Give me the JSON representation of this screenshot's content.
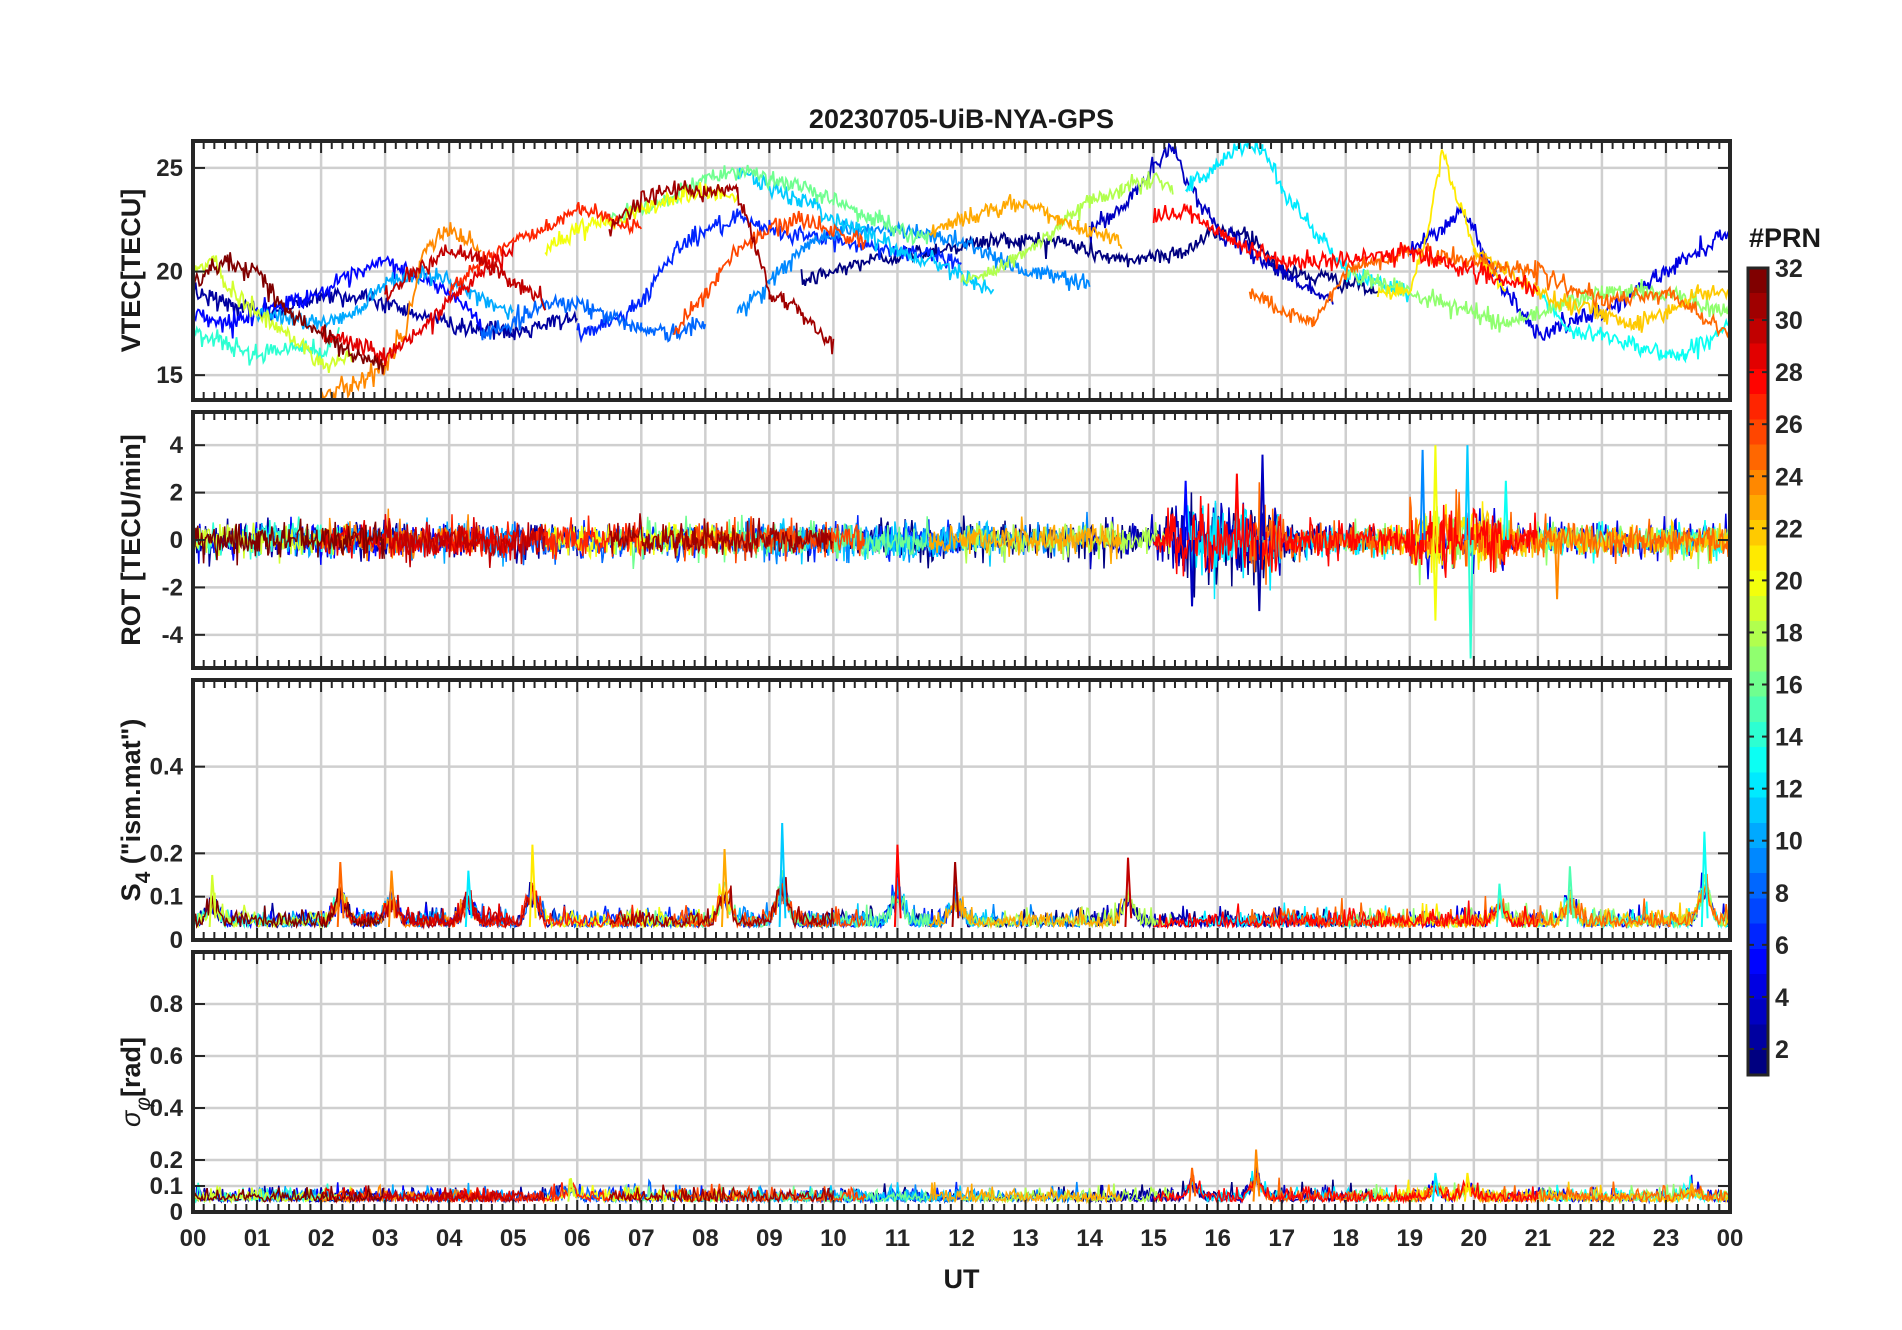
{
  "chart_data": {
    "type": "line",
    "title": "20230705-UiB-NYA-GPS",
    "xlabel": "UT",
    "x_ticks": [
      "00",
      "01",
      "02",
      "03",
      "04",
      "05",
      "06",
      "07",
      "08",
      "09",
      "10",
      "11",
      "12",
      "13",
      "14",
      "15",
      "16",
      "17",
      "18",
      "19",
      "20",
      "21",
      "22",
      "23",
      "00"
    ],
    "xlim_hours": [
      0,
      24
    ],
    "grid": true,
    "colorbar": {
      "label": "#PRN",
      "range": [
        1,
        32
      ],
      "ticks": [
        "2",
        "4",
        "6",
        "8",
        "10",
        "12",
        "14",
        "16",
        "18",
        "20",
        "22",
        "24",
        "26",
        "28",
        "30",
        "32"
      ],
      "colormap": "jet",
      "colors": [
        "#00007f",
        "#0000ff",
        "#007fff",
        "#00ffff",
        "#7fff7f",
        "#ffff00",
        "#ff7f00",
        "#ff0000",
        "#7f0000"
      ]
    },
    "panels": [
      {
        "id": "vtec",
        "ylabel": "VTEC[TECU]",
        "ylim": [
          13.8,
          26.3
        ],
        "yticks": [
          15,
          20,
          25
        ],
        "ytick_labels": [
          "15",
          "20",
          "25"
        ],
        "series": [
          {
            "prn": 1,
            "x": [
              9.5,
              10.5,
              11.5,
              12.5,
              13.5,
              14.5,
              15.5,
              16,
              16.5,
              17,
              18,
              18.5
            ],
            "y": [
              19.5,
              20.5,
              21,
              21.5,
              21.5,
              20.5,
              21,
              22,
              21.8,
              20,
              19.5,
              19
            ]
          },
          {
            "prn": 2,
            "x": [
              0,
              0.5,
              1,
              1.5,
              2,
              3,
              4,
              4.5,
              5,
              6
            ],
            "y": [
              19,
              18.5,
              18,
              18.2,
              19,
              18.5,
              17.5,
              17.2,
              17,
              17.8
            ]
          },
          {
            "prn": 3,
            "x": [
              14,
              14.5,
              15,
              15.3,
              15.6,
              16,
              16.5,
              17,
              17.8
            ],
            "y": [
              22,
              23,
              25,
              26,
              24,
              22,
              21,
              20,
              18.5
            ]
          },
          {
            "prn": 4,
            "x": [
              19,
              19.5,
              19.8,
              20,
              20.3,
              21,
              21.5,
              22,
              23,
              23.5,
              24
            ],
            "y": [
              21,
              22,
              23,
              22,
              20,
              17,
              17.5,
              18,
              20,
              21,
              22
            ]
          },
          {
            "prn": 5,
            "x": [
              0,
              0.5,
              1,
              2,
              3,
              4,
              4.5
            ],
            "y": [
              18,
              17.5,
              18,
              19,
              20.5,
              19,
              17.5
            ]
          },
          {
            "prn": 6,
            "x": [
              6,
              6.5,
              7,
              7.5,
              8,
              8.5,
              9,
              10,
              11,
              12
            ],
            "y": [
              17,
              17.5,
              18.5,
              21,
              22,
              22.5,
              22,
              21.5,
              21,
              20.5
            ]
          },
          {
            "prn": 8,
            "x": [
              4.5,
              5,
              5.5,
              6,
              6.5,
              7,
              7.5,
              8
            ],
            "y": [
              17,
              17.5,
              18.5,
              18.5,
              17.8,
              17.3,
              17,
              17.5
            ]
          },
          {
            "prn": 9,
            "x": [
              8.5,
              9,
              9.5,
              10,
              11,
              12,
              13,
              14
            ],
            "y": [
              18,
              19.5,
              21,
              22,
              22,
              21.5,
              20,
              19.5
            ]
          },
          {
            "prn": 10,
            "x": [
              1,
              2,
              2.5,
              3,
              3.5,
              4,
              5
            ],
            "y": [
              18,
              17.5,
              18,
              19.5,
              20,
              19.5,
              18
            ]
          },
          {
            "prn": 11,
            "x": [
              8.5,
              9,
              9.5,
              10,
              10.5,
              11,
              12,
              12.5
            ],
            "y": [
              25,
              24,
              23.5,
              22.5,
              22,
              21,
              20,
              19
            ]
          },
          {
            "prn": 12,
            "x": [
              15.5,
              16,
              16.3,
              16.7,
              17,
              18,
              19
            ],
            "y": [
              24,
              25,
              26,
              26,
              24,
              20,
              19
            ]
          },
          {
            "prn": 13,
            "x": [
              21,
              21.5,
              22,
              23,
              23.3,
              23.8,
              24
            ],
            "y": [
              19,
              17,
              17,
              16,
              16,
              17,
              17.5
            ]
          },
          {
            "prn": 14,
            "x": [
              0,
              0.5,
              1,
              1.5,
              2,
              2.3
            ],
            "y": [
              17,
              16.5,
              16,
              16.5,
              16,
              17
            ]
          },
          {
            "prn": 16,
            "x": [
              6.5,
              7,
              7.5,
              8,
              8.5,
              9,
              10,
              11,
              11.5
            ],
            "y": [
              22.5,
              23,
              23.5,
              24.5,
              25,
              24.5,
              23.5,
              22,
              21.5
            ]
          },
          {
            "prn": 17,
            "x": [
              18,
              18.5,
              19,
              19.5,
              20,
              20.5,
              21,
              22,
              23,
              24
            ],
            "y": [
              20,
              19.5,
              19,
              18.5,
              18,
              17.5,
              18,
              19,
              19,
              18
            ]
          },
          {
            "prn": 18,
            "x": [
              12,
              12.5,
              13,
              13.5,
              14,
              14.5,
              15,
              15.3
            ],
            "y": [
              19.5,
              20,
              21,
              22,
              23.5,
              24,
              24.5,
              24
            ]
          },
          {
            "prn": 19,
            "x": [
              0,
              0.3,
              0.6,
              1,
              1.5,
              2,
              2.5
            ],
            "y": [
              20,
              20.5,
              19,
              18,
              17,
              15.5,
              16
            ]
          },
          {
            "prn": 20,
            "x": [
              5.5,
              6,
              6.5,
              7,
              7.5,
              8,
              8.5
            ],
            "y": [
              21,
              22,
              22.5,
              23,
              23.5,
              24,
              23.5
            ]
          },
          {
            "prn": 21,
            "x": [
              18.5,
              19,
              19.3,
              19.5,
              20,
              20.5
            ],
            "y": [
              19,
              19,
              22,
              26,
              21,
              19
            ]
          },
          {
            "prn": 22,
            "x": [
              20,
              20.5,
              21,
              22,
              22.5,
              23,
              23.5,
              24
            ],
            "y": [
              21,
              20,
              19,
              18,
              17.5,
              18,
              19,
              19
            ]
          },
          {
            "prn": 23,
            "x": [
              11.5,
              12,
              12.5,
              13,
              13.5,
              14,
              14.5
            ],
            "y": [
              22,
              22.5,
              23,
              23.3,
              22.5,
              22,
              21.5
            ]
          },
          {
            "prn": 24,
            "x": [
              2,
              2.5,
              3,
              3.3,
              3.6,
              4,
              4.5
            ],
            "y": [
              14,
              14.5,
              15.5,
              17,
              21,
              22,
              21
            ]
          },
          {
            "prn": 25,
            "x": [
              16.5,
              17,
              17.5,
              18,
              19,
              20,
              21,
              22,
              23,
              24
            ],
            "y": [
              19,
              18,
              17.5,
              20,
              21,
              20.5,
              20,
              18.5,
              19,
              17
            ]
          },
          {
            "prn": 26,
            "x": [
              7.5,
              8,
              8.5,
              9,
              9.5,
              10,
              10.5
            ],
            "y": [
              17,
              19,
              21,
              22,
              22.5,
              22,
              21.5
            ]
          },
          {
            "prn": 27,
            "x": [
              4,
              4.5,
              5,
              5.5,
              6,
              6.5,
              7
            ],
            "y": [
              19,
              20.5,
              21.5,
              22,
              23,
              22.5,
              22
            ]
          },
          {
            "prn": 28,
            "x": [
              15,
              15.5,
              16,
              16.5,
              17,
              17.5,
              18,
              19,
              20,
              21
            ],
            "y": [
              22.5,
              23,
              22,
              21,
              20.5,
              20.5,
              20.5,
              21,
              20,
              19
            ]
          },
          {
            "prn": 29,
            "x": [
              2,
              2.5,
              3,
              3.5,
              4,
              4.5,
              5
            ],
            "y": [
              17,
              16.5,
              16,
              17,
              18.5,
              20,
              21
            ]
          },
          {
            "prn": 30,
            "x": [
              3,
              3.5,
              4,
              4.5,
              5,
              5.5
            ],
            "y": [
              19,
              20,
              21,
              20.5,
              19.5,
              18.5
            ]
          },
          {
            "prn": 31,
            "x": [
              6.5,
              7,
              7.5,
              8,
              8.5,
              9,
              9.5,
              10
            ],
            "y": [
              22,
              23.5,
              24,
              23.8,
              24,
              19,
              18,
              16.5
            ]
          },
          {
            "prn": 32,
            "x": [
              0,
              0.5,
              1,
              1.5,
              2,
              2.5,
              3
            ],
            "y": [
              19.5,
              20.5,
              20,
              18,
              17,
              16,
              15.5
            ]
          }
        ]
      },
      {
        "id": "rot",
        "ylabel": "ROT [TECU/min]",
        "ylim": [
          -5.4,
          5.4
        ],
        "yticks": [
          -4,
          -2,
          0,
          2,
          4
        ],
        "ytick_labels": [
          "-4",
          "-2",
          "0",
          "2",
          "4"
        ],
        "noise_std": 0.35,
        "spikes": [
          {
            "x": 15.5,
            "y": 2.5
          },
          {
            "x": 15.6,
            "y": -2.8
          },
          {
            "x": 16.3,
            "y": 2.8
          },
          {
            "x": 16.65,
            "y": -3.0
          },
          {
            "x": 16.7,
            "y": 3.6
          },
          {
            "x": 19.2,
            "y": 3.8
          },
          {
            "x": 19.4,
            "y": 4.0
          },
          {
            "x": 19.4,
            "y": -3.4
          },
          {
            "x": 19.9,
            "y": 4.0
          },
          {
            "x": 19.95,
            "y": -5.0
          },
          {
            "x": 20.5,
            "y": 2.5
          },
          {
            "x": 21.3,
            "y": -2.5
          }
        ]
      },
      {
        "id": "s4",
        "ylabel": "S4 (\"ism.mat\")",
        "ylabel_main": "S",
        "ylabel_sub": "4",
        "ylabel_rest": " (\"ism.mat\")",
        "ylim": [
          0,
          0.6
        ],
        "yticks": [
          0,
          0.1,
          0.2,
          0.4
        ],
        "ytick_labels": [
          "0",
          "0.1",
          "0.2",
          "0.4"
        ],
        "baseline": 0.03,
        "bursts": [
          {
            "x": 0.3,
            "y": 0.15
          },
          {
            "x": 2.3,
            "y": 0.18
          },
          {
            "x": 3.1,
            "y": 0.16
          },
          {
            "x": 4.3,
            "y": 0.16
          },
          {
            "x": 5.3,
            "y": 0.22
          },
          {
            "x": 8.3,
            "y": 0.21
          },
          {
            "x": 9.2,
            "y": 0.27
          },
          {
            "x": 11.0,
            "y": 0.22
          },
          {
            "x": 11.9,
            "y": 0.18
          },
          {
            "x": 14.6,
            "y": 0.19
          },
          {
            "x": 20.4,
            "y": 0.13
          },
          {
            "x": 21.5,
            "y": 0.17
          },
          {
            "x": 23.6,
            "y": 0.25
          }
        ]
      },
      {
        "id": "sigphi",
        "ylabel": "σφ[rad]",
        "ylabel_main": "σ",
        "ylabel_sub": "φ",
        "ylabel_rest": "[rad]",
        "ylim": [
          0,
          1.0
        ],
        "yticks": [
          0,
          0.1,
          0.2,
          0.4,
          0.6,
          0.8
        ],
        "ytick_labels": [
          "0",
          "0.1",
          "0.2",
          "0.4",
          "0.6",
          "0.8"
        ],
        "baseline": 0.04,
        "bursts": [
          {
            "x": 5.9,
            "y": 0.13
          },
          {
            "x": 15.6,
            "y": 0.17
          },
          {
            "x": 16.6,
            "y": 0.24
          },
          {
            "x": 19.4,
            "y": 0.15
          },
          {
            "x": 19.9,
            "y": 0.15
          },
          {
            "x": 23.4,
            "y": 0.11
          }
        ]
      }
    ]
  }
}
